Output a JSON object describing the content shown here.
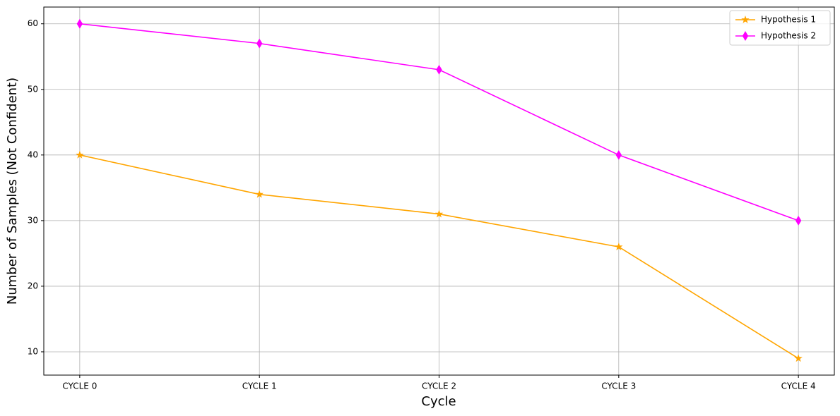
{
  "chart_data": {
    "type": "line",
    "x_label": "Cycle",
    "y_label": "Number of Samples (Not Confident)",
    "categories": [
      "CYCLE 0",
      "CYCLE 1",
      "CYCLE 2",
      "CYCLE 3",
      "CYCLE 4"
    ],
    "series": [
      {
        "name": "Hypothesis 1",
        "color": "#ffa500",
        "marker": "star",
        "values": [
          40,
          34,
          31,
          26,
          9
        ]
      },
      {
        "name": "Hypothesis 2",
        "color": "#ff00ff",
        "marker": "diamond",
        "values": [
          60,
          57,
          53,
          40,
          30
        ]
      }
    ],
    "ylim": [
      6.45,
      62.55
    ],
    "yticks": [
      10,
      20,
      30,
      40,
      50,
      60
    ],
    "grid": true,
    "legend": "upper right"
  }
}
